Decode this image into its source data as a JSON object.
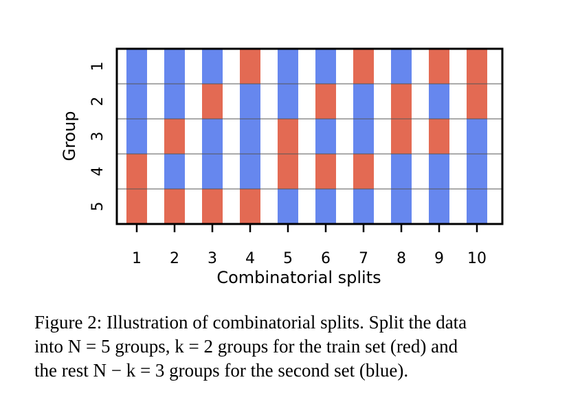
{
  "chart_data": {
    "type": "heatmap",
    "xlabel": "Combinatorial splits",
    "ylabel": "Group",
    "x_ticks": [
      "1",
      "2",
      "3",
      "4",
      "5",
      "6",
      "7",
      "8",
      "9",
      "10"
    ],
    "y_ticks": [
      "1",
      "2",
      "3",
      "4",
      "5"
    ],
    "colors": {
      "train": "#e36a53",
      "test": "#6687ee"
    },
    "legend": "none",
    "grid": true,
    "splits": [
      {
        "split": 1,
        "train_groups": [
          4,
          5
        ]
      },
      {
        "split": 2,
        "train_groups": [
          3,
          5
        ]
      },
      {
        "split": 3,
        "train_groups": [
          2,
          5
        ]
      },
      {
        "split": 4,
        "train_groups": [
          1,
          5
        ]
      },
      {
        "split": 5,
        "train_groups": [
          3,
          4
        ]
      },
      {
        "split": 6,
        "train_groups": [
          2,
          4
        ]
      },
      {
        "split": 7,
        "train_groups": [
          1,
          4
        ]
      },
      {
        "split": 8,
        "train_groups": [
          2,
          3
        ]
      },
      {
        "split": 9,
        "train_groups": [
          1,
          3
        ]
      },
      {
        "split": 10,
        "train_groups": [
          1,
          2
        ]
      }
    ]
  },
  "caption": {
    "line1": "Figure 2: Illustration of combinatorial splits. Split the data",
    "line2": "into N = 5 groups, k = 2 groups for the train set (red) and",
    "line3": "the rest N − k = 3 groups for the second set (blue)."
  }
}
